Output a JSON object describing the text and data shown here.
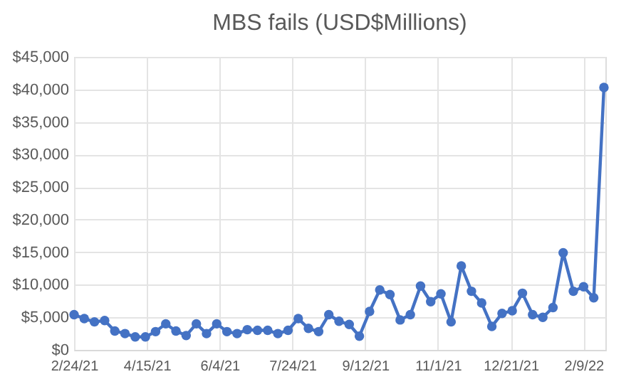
{
  "chart_data": {
    "type": "line",
    "title": "MBS fails (USD$Millions)",
    "x": [
      "2021-02-24",
      "2021-03-03",
      "2021-03-10",
      "2021-03-17",
      "2021-03-24",
      "2021-03-31",
      "2021-04-07",
      "2021-04-14",
      "2021-04-21",
      "2021-04-28",
      "2021-05-05",
      "2021-05-12",
      "2021-05-19",
      "2021-05-26",
      "2021-06-02",
      "2021-06-09",
      "2021-06-16",
      "2021-06-23",
      "2021-06-30",
      "2021-07-07",
      "2021-07-14",
      "2021-07-21",
      "2021-07-28",
      "2021-08-04",
      "2021-08-11",
      "2021-08-18",
      "2021-08-25",
      "2021-09-01",
      "2021-09-08",
      "2021-09-15",
      "2021-09-22",
      "2021-09-29",
      "2021-10-06",
      "2021-10-13",
      "2021-10-20",
      "2021-10-27",
      "2021-11-03",
      "2021-11-10",
      "2021-11-17",
      "2021-11-24",
      "2021-12-01",
      "2021-12-08",
      "2021-12-15",
      "2021-12-22",
      "2021-12-29",
      "2022-01-05",
      "2022-01-12",
      "2022-01-19",
      "2022-01-26",
      "2022-02-02",
      "2022-02-09",
      "2022-02-16",
      "2022-02-23"
    ],
    "series": [
      {
        "color": "#4472c4",
        "values": [
          5400,
          4800,
          4300,
          4500,
          2900,
          2500,
          2000,
          2000,
          2800,
          4000,
          2900,
          2200,
          4000,
          2500,
          4000,
          2800,
          2500,
          3100,
          3000,
          3000,
          2500,
          3000,
          4800,
          3300,
          2800,
          5400,
          4400,
          3900,
          2100,
          5900,
          9200,
          8500,
          4600,
          5400,
          9800,
          7400,
          8600,
          4300,
          12900,
          9000,
          7200,
          3600,
          5600,
          6000,
          8700,
          5400,
          5000,
          6500,
          14900,
          9000,
          9700,
          8000,
          40300
        ]
      }
    ],
    "xlim": [
      "2021-02-24",
      "2022-02-24"
    ],
    "xticks": [
      {
        "value": "2021-02-24",
        "label": "2/24/21"
      },
      {
        "value": "2021-04-15",
        "label": "4/15/21"
      },
      {
        "value": "2021-06-04",
        "label": "6/4/21"
      },
      {
        "value": "2021-07-24",
        "label": "7/24/21"
      },
      {
        "value": "2021-09-12",
        "label": "9/12/21"
      },
      {
        "value": "2021-11-01",
        "label": "11/1/21"
      },
      {
        "value": "2021-12-21",
        "label": "12/21/21"
      },
      {
        "value": "2022-02-09",
        "label": "2/9/22"
      }
    ],
    "ylim": [
      0,
      45000
    ],
    "yticks": [
      {
        "value": 0,
        "label": "$0"
      },
      {
        "value": 5000,
        "label": "$5,000"
      },
      {
        "value": 10000,
        "label": "$10,000"
      },
      {
        "value": 15000,
        "label": "$15,000"
      },
      {
        "value": 20000,
        "label": "$20,000"
      },
      {
        "value": 25000,
        "label": "$25,000"
      },
      {
        "value": 30000,
        "label": "$30,000"
      },
      {
        "value": 35000,
        "label": "$35,000"
      },
      {
        "value": 40000,
        "label": "$40,000"
      },
      {
        "value": 45000,
        "label": "$45,000"
      }
    ],
    "grid": true,
    "marker": "circle",
    "line_style": "solid"
  }
}
